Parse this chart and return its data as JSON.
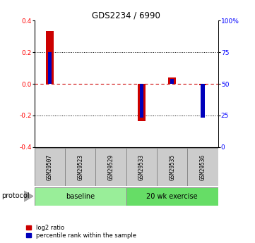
{
  "title": "GDS2234 / 6990",
  "samples": [
    "GSM29507",
    "GSM29523",
    "GSM29529",
    "GSM29533",
    "GSM29535",
    "GSM29536"
  ],
  "log2_ratio": [
    0.335,
    0.0,
    0.0,
    -0.235,
    0.04,
    -0.008
  ],
  "percentile_rank": [
    75.0,
    50.0,
    50.0,
    23.0,
    54.0,
    23.0
  ],
  "groups": [
    {
      "name": "baseline",
      "indices": [
        0,
        1,
        2
      ],
      "color": "#99ee99"
    },
    {
      "name": "20 wk exercise",
      "indices": [
        3,
        4,
        5
      ],
      "color": "#66dd66"
    }
  ],
  "ylim_left": [
    -0.4,
    0.4
  ],
  "ylim_right": [
    0,
    100
  ],
  "yticks_left": [
    -0.4,
    -0.2,
    0.0,
    0.2,
    0.4
  ],
  "yticks_right": [
    0,
    25,
    50,
    75,
    100
  ],
  "red_bar_width": 0.25,
  "blue_bar_width": 0.12,
  "red_color": "#cc0000",
  "blue_color": "#0000bb",
  "bg_color": "#ffffff",
  "zero_line_color": "#cc0000",
  "dotted_line_color": "#000000",
  "sample_bg": "#cccccc",
  "legend_items": [
    "log2 ratio",
    "percentile rank within the sample"
  ],
  "protocol_label": "protocol"
}
